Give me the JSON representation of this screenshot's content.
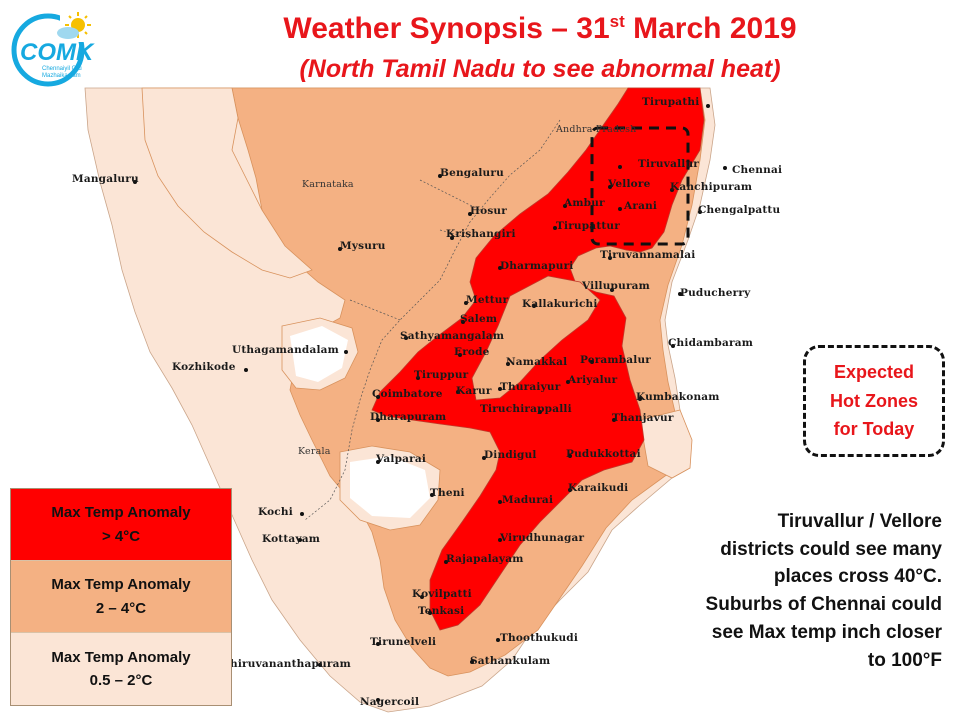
{
  "header": {
    "title_main": "Weather Synopsis – 31",
    "title_sup": "st",
    "title_tail": " March 2019",
    "subtitle": "(North Tamil Nadu to see abnormal heat)"
  },
  "logo": {
    "text": "COMK",
    "tagline_1": "Chennaiyil Oru",
    "tagline_2": "Mazhaikaalam"
  },
  "places": {
    "tirupathi": "Tirupathi",
    "andhra": "Andhra Pradesh",
    "chennai": "Chennai",
    "tiruvallur": "Tiruvallur",
    "vellore": "Vellore",
    "kanchipuram": "Kanchipuram",
    "chengalpattu": "Chengalpattu",
    "ambur": "Ambur",
    "arani": "Arani",
    "tirupattur": "Tirupattur",
    "bengaluru": "Bengaluru",
    "karnataka": "Karnataka",
    "mangaluru": "Mangaluru",
    "hosur": "Hosur",
    "krishangiri": "Krishangiri",
    "mysuru": "Mysuru",
    "tiruvannamalai": "Tiruvannamalai",
    "dharmapuri": "Dharmapuri",
    "villupuram": "Villupuram",
    "puducherry": "Puducherry",
    "kallakurichi": "Kallakurichi",
    "mettur": "Mettur",
    "salem": "Salem",
    "sathyamangalam": "Sathyamangalam",
    "udhagamandalam": "Uthagamandalam",
    "kozhikode": "Kozhikode",
    "erode": "Erode",
    "chidambaram": "Chidambaram",
    "namakkal": "Namakkal",
    "perambalur": "Perambalur",
    "tiruppur": "Tiruppur",
    "coimbatore": "Coimbatore",
    "karur": "Karur",
    "thuraiyur": "Thuraiyur",
    "ariyalur": "Ariyalur",
    "kumbakonam": "Kumbakonam",
    "tiruchirappalli": "Tiruchirappalli",
    "thanjavur": "Thanjavur",
    "dharapuram": "Dharapuram",
    "kerala": "Kerala",
    "valparai": "Valparai",
    "dindigul": "Dindigul",
    "pudukkottai": "Pudukkottai",
    "theni": "Theni",
    "karaikudi": "Karaikudi",
    "kochi": "Kochi",
    "madurai": "Madurai",
    "kottayam": "Kottayam",
    "virudhunagar": "Virudhunagar",
    "rajapalayam": "Rajapalayam",
    "kovilpatti": "Kovilpatti",
    "tenkasi": "Tenkasi",
    "thoothukudi": "Thoothukudi",
    "tirunelveli": "Tirunelveli",
    "thiruvananthapuram": "Thiruvananthapuram",
    "sathankulam": "Sathankulam",
    "nagercoil": "Nagercoil"
  },
  "legend": {
    "items": [
      {
        "line1": "Max Temp Anomaly",
        "line2": "> 4°C",
        "color": "#ff0000"
      },
      {
        "line1": "Max Temp  Anomaly",
        "line2": "2 – 4°C",
        "color": "#f4b183"
      },
      {
        "line1": "Max Temp Anomaly",
        "line2": "0.5 – 2°C",
        "color": "#fbe5d6"
      }
    ]
  },
  "hot_zone_box": {
    "line1": "Expected",
    "line2": "Hot Zones",
    "line3": "for Today"
  },
  "note": {
    "lines": [
      "Tiruvallur / Vellore",
      "districts could see many",
      "places cross 40°C.",
      "Suburbs of Chennai could",
      "see Max temp inch closer",
      "to 100°F"
    ]
  },
  "colors": {
    "title": "#e8161b",
    "high": "#ff0000",
    "mid": "#f4b183",
    "low": "#fbe5d6",
    "sea": "#ffffff"
  }
}
